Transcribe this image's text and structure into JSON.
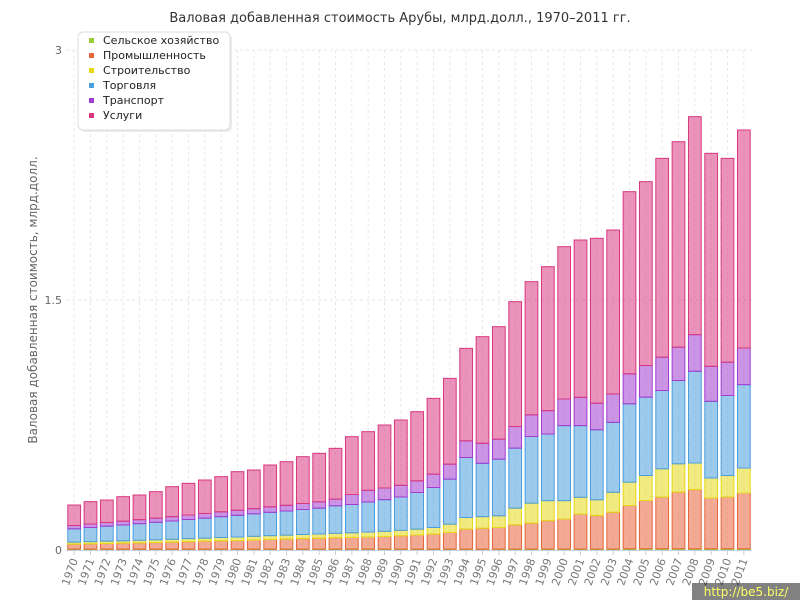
{
  "chart_data": {
    "type": "bar",
    "stacked": true,
    "title": "Валовая добавленная стоимость Арубы, млрд.долл., 1970–2011 гг.",
    "ylabel": "Валовая добавленная стоимость, млрд.долл.",
    "xlabel": "",
    "ylim": [
      0,
      3
    ],
    "yticks": [
      "0",
      "1.5",
      "3"
    ],
    "grid": true,
    "legend_position": "top-left",
    "categories": [
      "1970",
      "1971",
      "1972",
      "1973",
      "1974",
      "1975",
      "1976",
      "1977",
      "1978",
      "1979",
      "1980",
      "1981",
      "1982",
      "1983",
      "1984",
      "1985",
      "1986",
      "1987",
      "1988",
      "1989",
      "1990",
      "1991",
      "1992",
      "1993",
      "1994",
      "1995",
      "1996",
      "1997",
      "1998",
      "1999",
      "2000",
      "2001",
      "2002",
      "2003",
      "2004",
      "2005",
      "2006",
      "2007",
      "2008",
      "2009",
      "2010",
      "2011"
    ],
    "series": [
      {
        "name": "Сельское хозяйство",
        "color": "#9acd32",
        "values": [
          0.005,
          0.005,
          0.005,
          0.005,
          0.005,
          0.005,
          0.005,
          0.005,
          0.005,
          0.005,
          0.005,
          0.005,
          0.005,
          0.005,
          0.005,
          0.005,
          0.005,
          0.005,
          0.005,
          0.005,
          0.005,
          0.005,
          0.005,
          0.005,
          0.005,
          0.005,
          0.005,
          0.006,
          0.006,
          0.006,
          0.006,
          0.006,
          0.006,
          0.006,
          0.007,
          0.007,
          0.007,
          0.007,
          0.007,
          0.007,
          0.007,
          0.007
        ]
      },
      {
        "name": "Промышленность",
        "color": "#e8643c",
        "values": [
          0.03,
          0.032,
          0.034,
          0.036,
          0.038,
          0.04,
          0.042,
          0.045,
          0.048,
          0.05,
          0.052,
          0.055,
          0.058,
          0.06,
          0.063,
          0.065,
          0.068,
          0.07,
          0.073,
          0.076,
          0.08,
          0.085,
          0.09,
          0.1,
          0.12,
          0.125,
          0.13,
          0.145,
          0.155,
          0.17,
          0.18,
          0.21,
          0.2,
          0.22,
          0.26,
          0.29,
          0.31,
          0.34,
          0.355,
          0.305,
          0.31,
          0.335
        ]
      },
      {
        "name": "Строительство",
        "color": "#e6d817",
        "values": [
          0.012,
          0.013,
          0.014,
          0.014,
          0.015,
          0.016,
          0.017,
          0.018,
          0.018,
          0.02,
          0.021,
          0.022,
          0.023,
          0.024,
          0.025,
          0.026,
          0.027,
          0.028,
          0.03,
          0.031,
          0.033,
          0.035,
          0.04,
          0.05,
          0.07,
          0.07,
          0.07,
          0.1,
          0.12,
          0.12,
          0.11,
          0.1,
          0.095,
          0.12,
          0.14,
          0.15,
          0.17,
          0.17,
          0.16,
          0.12,
          0.13,
          0.15
        ]
      },
      {
        "name": "Торговля",
        "color": "#4a9ede",
        "values": [
          0.08,
          0.085,
          0.09,
          0.095,
          0.1,
          0.105,
          0.11,
          0.115,
          0.12,
          0.125,
          0.13,
          0.135,
          0.14,
          0.145,
          0.15,
          0.155,
          0.165,
          0.17,
          0.18,
          0.19,
          0.2,
          0.22,
          0.24,
          0.27,
          0.36,
          0.32,
          0.34,
          0.36,
          0.4,
          0.4,
          0.45,
          0.43,
          0.42,
          0.42,
          0.47,
          0.47,
          0.47,
          0.5,
          0.55,
          0.46,
          0.48,
          0.5
        ]
      },
      {
        "name": "Транспорт",
        "color": "#a03cd0",
        "values": [
          0.02,
          0.021,
          0.022,
          0.023,
          0.024,
          0.025,
          0.026,
          0.027,
          0.028,
          0.029,
          0.03,
          0.031,
          0.033,
          0.034,
          0.036,
          0.038,
          0.04,
          0.06,
          0.07,
          0.07,
          0.07,
          0.07,
          0.08,
          0.09,
          0.1,
          0.12,
          0.12,
          0.13,
          0.13,
          0.14,
          0.16,
          0.17,
          0.16,
          0.17,
          0.18,
          0.19,
          0.2,
          0.2,
          0.22,
          0.21,
          0.2,
          0.22
        ]
      },
      {
        "name": "Услуги",
        "color": "#d83880",
        "values": [
          0.123,
          0.134,
          0.135,
          0.147,
          0.148,
          0.159,
          0.18,
          0.19,
          0.201,
          0.211,
          0.232,
          0.232,
          0.251,
          0.262,
          0.281,
          0.291,
          0.305,
          0.347,
          0.352,
          0.378,
          0.392,
          0.415,
          0.455,
          0.515,
          0.555,
          0.64,
          0.675,
          0.749,
          0.799,
          0.864,
          0.914,
          0.944,
          0.989,
          0.984,
          1.093,
          1.103,
          1.193,
          1.233,
          1.308,
          1.278,
          1.223,
          1.308
        ]
      }
    ],
    "watermark": "http://be5.biz/"
  }
}
